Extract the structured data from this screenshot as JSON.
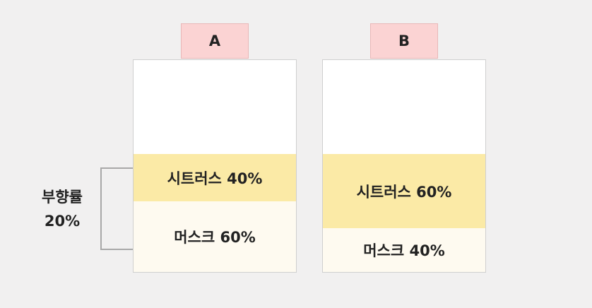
{
  "bottles": [
    {
      "tab_label": "A",
      "layers": [
        {
          "label": "시트러스 40%",
          "fraction": 0.4,
          "color": "#fbeaa6"
        },
        {
          "label": "머스크 60%",
          "fraction": 0.6,
          "color": "#fefaf0"
        }
      ]
    },
    {
      "tab_label": "B",
      "layers": [
        {
          "label": "시트러스 60%",
          "fraction": 0.6,
          "color": "#fbeaa6"
        },
        {
          "label": "머스크 40%",
          "fraction": 0.4,
          "color": "#fefaf0"
        }
      ]
    }
  ],
  "annotation": {
    "line1": "부향률",
    "line2": "20%"
  },
  "colors": {
    "tab": "#fbd3d3",
    "background": "#f1f0f0",
    "bracket": "#a8a8a8"
  }
}
